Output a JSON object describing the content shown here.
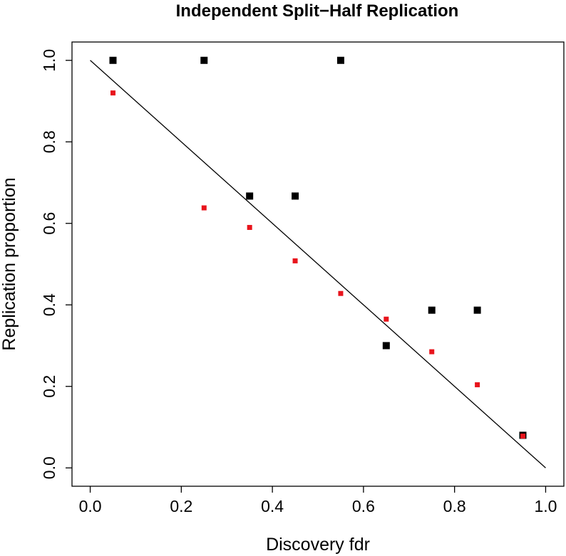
{
  "chart_data": {
    "type": "scatter",
    "title": "Independent Split−Half Replication",
    "xlabel": "Discovery fdr",
    "ylabel": "Replication proportion",
    "xlim": [
      -0.04,
      1.04
    ],
    "ylim": [
      -0.045,
      1.045
    ],
    "x_ticks": [
      "0.0",
      "0.2",
      "0.4",
      "0.6",
      "0.8",
      "1.0"
    ],
    "x_tick_values": [
      0,
      0.2,
      0.4,
      0.6,
      0.8,
      1.0
    ],
    "y_ticks": [
      "0.0",
      "0.2",
      "0.4",
      "0.6",
      "0.8",
      "1.0"
    ],
    "y_tick_values": [
      0,
      0.2,
      0.4,
      0.6,
      0.8,
      1.0
    ],
    "grid": false,
    "reference_line": {
      "x": [
        0,
        1
      ],
      "y": [
        1,
        0
      ],
      "color": "#000000"
    },
    "series": [
      {
        "color": "#000000",
        "marker": "square-large",
        "x": [
          0.05,
          0.25,
          0.35,
          0.45,
          0.55,
          0.65,
          0.75,
          0.85,
          0.95
        ],
        "y": [
          1.0,
          1.0,
          0.667,
          0.667,
          1.0,
          0.3,
          0.387,
          0.387,
          0.08
        ]
      },
      {
        "color": "#e8141c",
        "marker": "square-small",
        "x": [
          0.05,
          0.25,
          0.35,
          0.45,
          0.55,
          0.65,
          0.75,
          0.85,
          0.95
        ],
        "y": [
          0.92,
          0.638,
          0.59,
          0.508,
          0.428,
          0.365,
          0.285,
          0.204,
          0.078
        ]
      }
    ]
  }
}
